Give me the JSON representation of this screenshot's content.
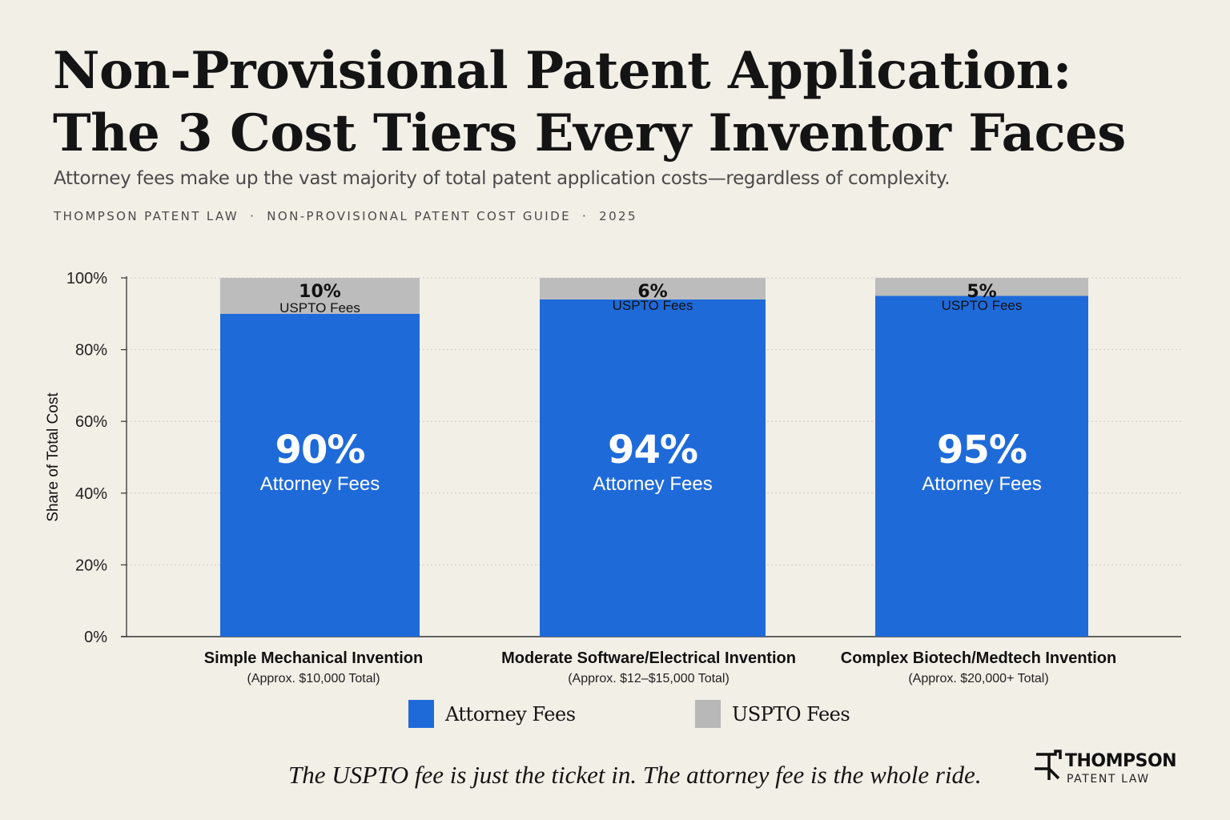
{
  "header": {
    "title_line1": "Non-Provisional Patent Application:",
    "title_line2": "The 3 Cost Tiers Every Inventor Faces",
    "subtitle": "Attorney fees make up the vast majority of total patent application costs—regardless of complexity.",
    "byline": [
      "THOMPSON PATENT LAW",
      "NON-PROVISIONAL PATENT COST GUIDE",
      "2025"
    ]
  },
  "chart_data": {
    "type": "bar",
    "stacked": true,
    "categories": [
      "Simple Mechanical Invention",
      "Moderate Software/Electrical Invention",
      "Complex Biotech/Medtech Invention"
    ],
    "category_subtitles": [
      "(Approx. $10,000 Total)",
      "(Approx. $12–$15,000 Total)",
      "(Approx. $20,000+ Total)"
    ],
    "series": [
      {
        "name": "Attorney Fees",
        "values": [
          90,
          94,
          95
        ],
        "color": "#1f6ad9"
      },
      {
        "name": "USPTO Fees",
        "values": [
          10,
          6,
          5
        ],
        "color": "#bcbcbc"
      }
    ],
    "data_labels": {
      "attorney": [
        "90%",
        "94%",
        "95%"
      ],
      "attorney_caption": "Attorney Fees",
      "uspto": [
        "10%",
        "6%",
        "5%"
      ],
      "uspto_caption": "USPTO Fees"
    },
    "ylabel": "Share of Total Cost",
    "xlabel": "",
    "ylim": [
      0,
      100
    ],
    "yticks": [
      0,
      20,
      40,
      60,
      80,
      100
    ],
    "ytick_labels": [
      "0%",
      "20%",
      "40%",
      "60%",
      "80%",
      "100%"
    ],
    "grid": true,
    "legend_position": "bottom"
  },
  "footer": {
    "tagline": "The USPTO fee is just the ticket in. The attorney fee is the whole ride.",
    "logo_name": "THOMPSON",
    "logo_sub": "PATENT LAW"
  },
  "colors": {
    "background": "#f2efe7",
    "attorney": "#1f6ad9",
    "uspto": "#bcbcbc"
  }
}
